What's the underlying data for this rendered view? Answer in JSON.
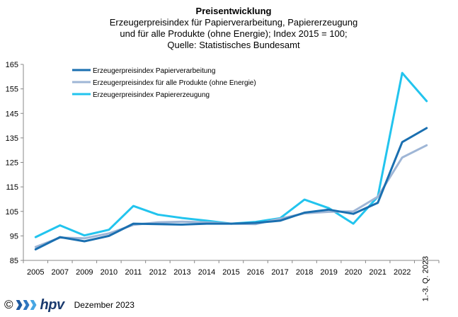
{
  "chart_data": {
    "type": "line",
    "title": "Preisentwicklung",
    "subtitle_lines": [
      "Erzeugerpreisindex  für Papierverarbeitung,  Papiererzeugung",
      "und für alle Produkte (ohne Energie); Index 2015 = 100;",
      "Quelle: Statistisches Bundesamt"
    ],
    "x_labels": [
      "2005",
      "2007",
      "2009",
      "2010",
      "2011",
      "2012",
      "2013",
      "2014",
      "2015",
      "2016",
      "2017",
      "2018",
      "2019",
      "2020",
      "2021",
      "2022",
      "1.-3. Q. 2023"
    ],
    "y_ticks": [
      85,
      95,
      105,
      115,
      125,
      135,
      145,
      155,
      165
    ],
    "ylim": [
      85,
      165
    ],
    "series": [
      {
        "name": "Erzeugerpreisindex Papierverarbeitung",
        "color": "#1a6fb0",
        "values": [
          89.5,
          94.5,
          92.8,
          95.0,
          100.0,
          99.8,
          99.6,
          100.0,
          100.0,
          100.3,
          101.2,
          104.5,
          105.7,
          104.0,
          108.5,
          133.3,
          139.0
        ]
      },
      {
        "name": "Erzeugerpreisindex für alle Produkte (ohne Energie)",
        "color": "#9fb6d6",
        "values": [
          90.5,
          94.3,
          94.0,
          96.0,
          99.5,
          100.5,
          100.8,
          100.5,
          100.0,
          99.8,
          102.0,
          104.2,
          104.8,
          105.0,
          111.0,
          127.0,
          132.0
        ]
      },
      {
        "name": "Erzeugerpreisindex Papiererzeugung",
        "color": "#22c4ee",
        "values": [
          94.5,
          99.3,
          95.2,
          97.5,
          107.2,
          103.7,
          102.3,
          101.2,
          100.0,
          100.7,
          102.2,
          109.8,
          106.3,
          100.0,
          111.0,
          161.5,
          150.0
        ]
      }
    ]
  },
  "footer": {
    "copyright": "©",
    "brand": "hpv",
    "date": "Dezember 2023"
  }
}
